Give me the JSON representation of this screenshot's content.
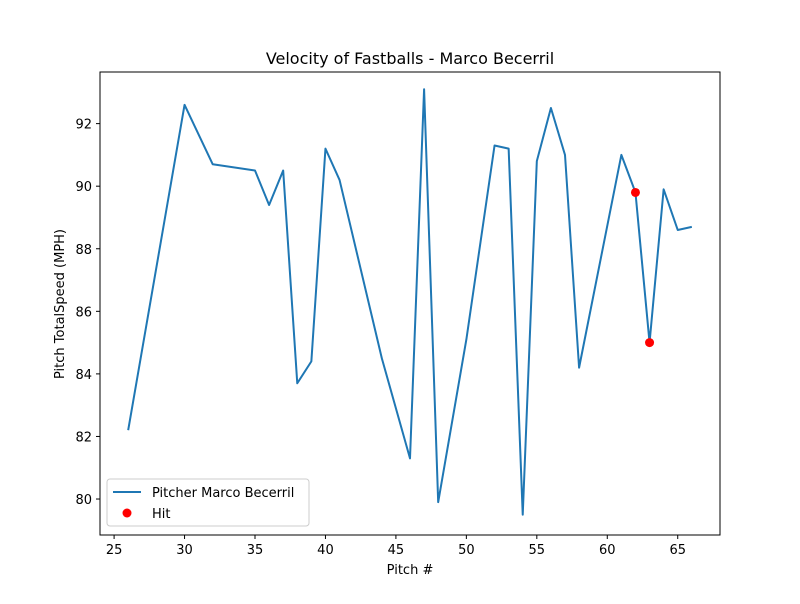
{
  "chart_data": {
    "type": "line",
    "title": "Velocity of Fastballs - Marco Becerril",
    "xlabel": "Pitch #",
    "ylabel": "Pitch TotalSpeed (MPH)",
    "xlim": [
      24.0,
      68.0
    ],
    "ylim": [
      78.85,
      93.65
    ],
    "xticks": [
      25,
      30,
      35,
      40,
      45,
      50,
      55,
      60,
      65
    ],
    "yticks": [
      80,
      82,
      84,
      86,
      88,
      90,
      92
    ],
    "legend_position": "lower-left",
    "grid": false,
    "series": [
      {
        "name": "Pitcher Marco Becerril",
        "type": "line",
        "color": "#1f77b4",
        "x": [
          26,
          30,
          32,
          35,
          36,
          37,
          38,
          39,
          40,
          41,
          44,
          46,
          47,
          48,
          50,
          52,
          53,
          54,
          55,
          56,
          57,
          58,
          61,
          62,
          63,
          64,
          65,
          66
        ],
        "y": [
          82.2,
          92.6,
          90.7,
          90.5,
          89.4,
          90.5,
          83.7,
          84.4,
          91.2,
          90.2,
          84.5,
          81.3,
          93.1,
          79.9,
          85.1,
          91.3,
          91.2,
          79.5,
          90.8,
          92.5,
          91.0,
          84.2,
          91.0,
          89.8,
          85.0,
          89.9,
          88.6,
          88.7
        ]
      },
      {
        "name": "Hit",
        "type": "scatter",
        "color": "#ff0000",
        "x": [
          62,
          63
        ],
        "y": [
          89.8,
          85.0
        ]
      }
    ]
  }
}
